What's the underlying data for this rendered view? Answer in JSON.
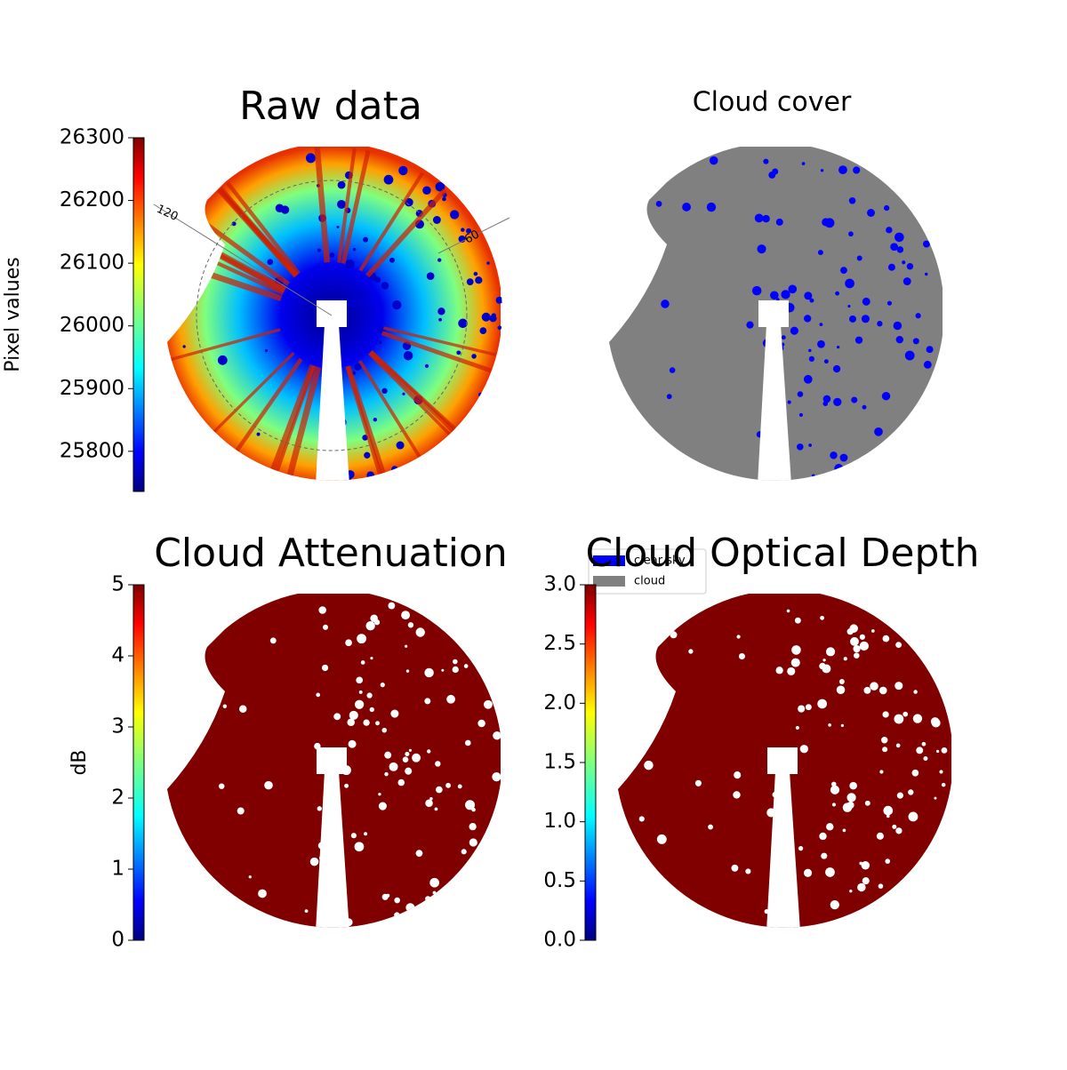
{
  "chart_data": [
    {
      "type": "image",
      "title": "Raw data",
      "ylabel": "Pixel values",
      "ylim": [
        25736,
        26300
      ],
      "yticks": [
        25800,
        25900,
        26000,
        26100,
        26200,
        26300
      ],
      "annotations": [
        "120",
        "60"
      ]
    },
    {
      "type": "image",
      "title": "Cloud cover",
      "series": [
        {
          "name": "clear sky",
          "color": "#0000ff"
        },
        {
          "name": "cloud",
          "color": "#808080"
        }
      ]
    },
    {
      "type": "image",
      "title": "Cloud Attenuation",
      "ylabel": "dB",
      "ylim": [
        0,
        5
      ],
      "yticks": [
        0,
        1,
        2,
        3,
        4,
        5
      ]
    },
    {
      "type": "image",
      "title": "Cloud Optical Depth",
      "ylim": [
        0,
        3
      ],
      "yticks": [
        {
          "value": 0,
          "label": "0.0"
        },
        0.5,
        {
          "value": 1,
          "label": "1.0"
        },
        1.5,
        {
          "value": 2,
          "label": "2.0"
        },
        2.5,
        {
          "value": 3,
          "label": "3.0"
        }
      ]
    }
  ]
}
